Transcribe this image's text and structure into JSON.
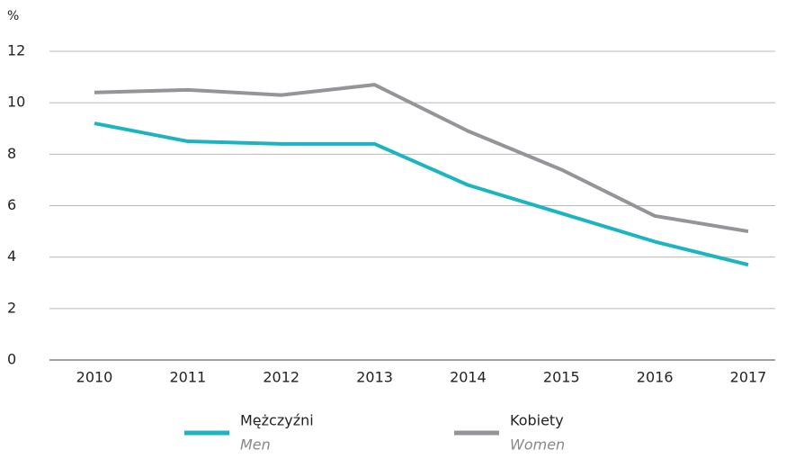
{
  "chart_data": {
    "type": "line",
    "y_label": "%",
    "categories": [
      "2010",
      "2011",
      "2012",
      "2013",
      "2014",
      "2015",
      "2016",
      "2017"
    ],
    "series": [
      {
        "name": "Mężczyźni",
        "name_en": "Men",
        "color": "#1ab5c1",
        "values": [
          9.2,
          8.5,
          8.4,
          8.4,
          6.8,
          5.7,
          4.6,
          3.7
        ]
      },
      {
        "name": "Kobiety",
        "name_en": "Women",
        "color": "#939598",
        "values": [
          10.4,
          10.5,
          10.3,
          10.7,
          8.9,
          7.4,
          5.6,
          5.0
        ]
      }
    ],
    "ylim": [
      0,
      12
    ],
    "yticks": [
      0,
      2,
      4,
      6,
      8,
      10,
      12
    ],
    "grid": true
  }
}
